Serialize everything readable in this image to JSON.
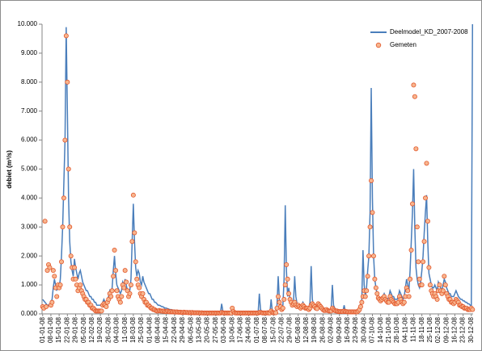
{
  "chart_data": {
    "type": "line",
    "y_label": "debiet (m³/s)",
    "categories": [
      "01-01-08",
      null,
      null,
      null,
      null,
      null,
      null,
      "08-01-08",
      null,
      null,
      null,
      null,
      null,
      null,
      "15-01-08",
      null,
      null,
      null,
      null,
      null,
      null,
      "22-01-08",
      null,
      null,
      null,
      null,
      null,
      null,
      "29-01-08",
      null,
      null,
      null,
      null,
      null,
      null,
      "05-02-08",
      null,
      null,
      null,
      null,
      null,
      null,
      "12-02-08",
      null,
      null,
      null,
      null,
      null,
      null,
      "19-02-08",
      null,
      null,
      null,
      null,
      null,
      null,
      "26-02-08",
      null,
      null,
      null,
      null,
      null,
      null,
      "04-03-08",
      null,
      null,
      null,
      null,
      null,
      null,
      "11-03-08",
      null,
      null,
      null,
      null,
      null,
      null,
      "18-03-08",
      null,
      null,
      null,
      null,
      null,
      null,
      "25-03-08",
      null,
      null,
      null,
      null,
      null,
      null,
      "01-04-08",
      null,
      null,
      null,
      null,
      null,
      null,
      "08-04-08",
      null,
      null,
      null,
      null,
      null,
      null,
      "15-04-08",
      null,
      null,
      null,
      null,
      null,
      null,
      "22-04-08",
      null,
      null,
      null,
      null,
      null,
      null,
      "29-04-08",
      null,
      null,
      null,
      null,
      null,
      null,
      "06-05-08",
      null,
      null,
      null,
      null,
      null,
      null,
      "13-05-08",
      null,
      null,
      null,
      null,
      null,
      null,
      "20-05-08",
      null,
      null,
      null,
      null,
      null,
      null,
      "27-05-08",
      null,
      null,
      null,
      null,
      null,
      null,
      "03-06-08",
      null,
      null,
      null,
      null,
      null,
      null,
      "10-06-08",
      null,
      null,
      null,
      null,
      null,
      null,
      "17-06-08",
      null,
      null,
      null,
      null,
      null,
      null,
      "24-06-08",
      null,
      null,
      null,
      null,
      null,
      null,
      "01-07-08",
      null,
      null,
      null,
      null,
      null,
      null,
      "08-07-08",
      null,
      null,
      null,
      null,
      null,
      null,
      "15-07-08",
      null,
      null,
      null,
      null,
      null,
      null,
      "22-07-08",
      null,
      null,
      null,
      null,
      null,
      null,
      "29-07-08",
      null,
      null,
      null,
      null,
      null,
      null,
      "05-08-08",
      null,
      null,
      null,
      null,
      null,
      null,
      "12-08-08",
      null,
      null,
      null,
      null,
      null,
      null,
      "19-08-08",
      null,
      null,
      null,
      null,
      null,
      null,
      "26-08-08",
      null,
      null,
      null,
      null,
      null,
      null,
      "02-09-08",
      null,
      null,
      null,
      null,
      null,
      null,
      "09-09-08",
      null,
      null,
      null,
      null,
      null,
      null,
      "16-09-08",
      null,
      null,
      null,
      null,
      null,
      null,
      "23-09-08",
      null,
      null,
      null,
      null,
      null,
      null,
      "30-09-08",
      null,
      null,
      null,
      null,
      null,
      null,
      "07-10-08",
      null,
      null,
      null,
      null,
      null,
      null,
      "14-10-08",
      null,
      null,
      null,
      null,
      null,
      null,
      "21-10-08",
      null,
      null,
      null,
      null,
      null,
      null,
      "28-10-08",
      null,
      null,
      null,
      null,
      null,
      null,
      "04-11-08",
      null,
      null,
      null,
      null,
      null,
      null,
      "11-11-08",
      null,
      null,
      null,
      null,
      null,
      null,
      "18-11-08",
      null,
      null,
      null,
      null,
      null,
      null,
      "25-11-08",
      null,
      null,
      null,
      null,
      null,
      null,
      "02-12-08",
      null,
      null,
      null,
      null,
      null,
      null,
      "09-12-08",
      null,
      null,
      null,
      null,
      null,
      null,
      "16-12-08",
      null,
      null,
      null,
      null,
      null,
      null,
      "23-12-08",
      null,
      null,
      null,
      null,
      null,
      null,
      "30-12-08",
      null
    ],
    "series": [
      {
        "name": "Deelmodel_KD_2007-2008",
        "type": "line",
        "color": "#4a7ebb",
        "values": [
          0.5,
          0.45,
          0.4,
          0.35,
          0.3,
          0.3,
          0.35,
          0.4,
          0.5,
          0.9,
          1.2,
          1.0,
          0.8,
          1.0,
          0.9,
          1.2,
          2.0,
          3.0,
          4.5,
          6.0,
          9.9,
          7.0,
          4.0,
          2.5,
          1.8,
          1.5,
          1.3,
          1.9,
          1.6,
          1.4,
          1.2,
          1.4,
          1.5,
          1.3,
          1.1,
          1.0,
          0.9,
          0.8,
          0.8,
          0.7,
          0.6,
          0.6,
          0.5,
          0.5,
          0.4,
          0.4,
          0.3,
          0.3,
          0.3,
          0.3,
          0.3,
          0.4,
          0.5,
          0.4,
          0.35,
          0.5,
          0.6,
          0.8,
          0.7,
          0.9,
          1.5,
          2.0,
          1.4,
          1.0,
          0.9,
          0.8,
          0.7,
          0.8,
          1.1,
          1.0,
          1.2,
          1.0,
          0.8,
          0.7,
          0.8,
          1.2,
          2.5,
          3.8,
          2.5,
          1.6,
          1.3,
          1.5,
          1.4,
          1.1,
          1.0,
          1.3,
          1.1,
          1.0,
          0.9,
          0.8,
          0.7,
          0.7,
          0.6,
          0.5,
          0.5,
          0.4,
          0.4,
          0.35,
          0.3,
          0.3,
          0.28,
          0.25,
          0.25,
          0.22,
          0.2,
          0.2,
          0.18,
          0.17,
          0.15,
          0.15,
          0.14,
          0.13,
          0.13,
          0.12,
          0.12,
          0.11,
          0.11,
          0.1,
          0.1,
          0.1,
          0.1,
          0.09,
          0.09,
          0.09,
          0.08,
          0.08,
          0.08,
          0.08,
          0.07,
          0.07,
          0.07,
          0.07,
          0.07,
          0.07,
          0.06,
          0.06,
          0.06,
          0.06,
          0.06,
          0.06,
          0.06,
          0.06,
          0.05,
          0.05,
          0.05,
          0.05,
          0.05,
          0.05,
          0.05,
          0.05,
          0.05,
          0.05,
          0.35,
          0.1,
          0.06,
          0.05,
          0.05,
          0.05,
          0.05,
          0.05,
          0.05,
          0.25,
          0.1,
          0.06,
          0.05,
          0.05,
          0.05,
          0.05,
          0.05,
          0.05,
          0.05,
          0.05,
          0.05,
          0.05,
          0.05,
          0.05,
          0.05,
          0.05,
          0.05,
          0.05,
          0.05,
          0.05,
          0.05,
          0.05,
          0.7,
          0.15,
          0.08,
          0.05,
          0.05,
          0.05,
          0.05,
          0.1,
          0.05,
          0.05,
          0.5,
          0.1,
          0.07,
          0.06,
          0.06,
          0.3,
          1.3,
          0.5,
          0.3,
          0.2,
          0.3,
          1.2,
          3.75,
          1.5,
          0.6,
          0.9,
          0.5,
          0.4,
          0.3,
          0.4,
          1.3,
          0.6,
          0.35,
          0.3,
          0.3,
          0.25,
          0.3,
          0.4,
          0.3,
          0.25,
          0.2,
          0.25,
          0.2,
          0.4,
          1.65,
          0.5,
          0.3,
          0.25,
          0.2,
          0.2,
          0.3,
          0.25,
          0.2,
          0.2,
          0.2,
          0.15,
          0.15,
          0.2,
          0.15,
          0.15,
          0.15,
          0.15,
          1.0,
          0.3,
          0.2,
          0.15,
          0.12,
          0.12,
          0.12,
          0.1,
          0.1,
          0.1,
          0.3,
          0.1,
          0.1,
          0.1,
          0.1,
          0.09,
          0.09,
          0.1,
          0.09,
          0.09,
          0.1,
          0.1,
          0.15,
          0.2,
          0.3,
          0.5,
          2.2,
          1.0,
          0.6,
          0.9,
          1.5,
          2.0,
          3.5,
          7.8,
          4.0,
          2.0,
          1.2,
          0.9,
          0.7,
          0.6,
          0.5,
          0.5,
          0.5,
          0.6,
          0.7,
          0.6,
          0.5,
          0.5,
          0.6,
          0.8,
          0.7,
          0.6,
          0.6,
          0.5,
          0.5,
          0.5,
          0.6,
          0.8,
          0.7,
          0.6,
          0.5,
          0.6,
          0.9,
          1.2,
          1.0,
          0.8,
          1.5,
          2.5,
          3.5,
          5.0,
          3.0,
          1.6,
          1.2,
          1.0,
          0.9,
          1.1,
          1.5,
          2.0,
          2.8,
          3.5,
          4.1,
          2.5,
          1.4,
          1.2,
          1.0,
          0.9,
          0.9,
          1.0,
          0.9,
          0.8,
          1.1,
          1.0,
          0.9,
          0.8,
          1.0,
          1.2,
          1.1,
          0.9,
          0.8,
          0.7,
          0.7,
          0.6,
          0.6,
          0.6,
          0.7,
          0.8,
          0.7,
          0.6,
          0.55,
          0.5,
          0.5,
          0.45,
          0.45,
          0.4,
          0.4,
          0.35,
          0.35,
          0.3,
          0.3,
          10.0
        ]
      },
      {
        "name": "Gemeten",
        "type": "scatter",
        "color": "#e2582c",
        "fill": "#f7b58e",
        "values": [
          0.25,
          0.2,
          3.2,
          0.25,
          1.5,
          1.7,
          1.6,
          0.3,
          0.4,
          1.5,
          1.3,
          0.9,
          0.6,
          1.0,
          0.9,
          1.0,
          1.8,
          3.0,
          4.0,
          6.0,
          9.6,
          8.0,
          5.0,
          3.0,
          2.0,
          1.6,
          1.2,
          1.6,
          1.2,
          1.0,
          0.8,
          0.9,
          1.0,
          0.8,
          0.7,
          0.6,
          0.5,
          0.5,
          0.4,
          0.4,
          0.3,
          0.3,
          0.2,
          0.2,
          0.15,
          0.1,
          0.1,
          0.1,
          0.1,
          0.1,
          0.1,
          0.3,
          0.35,
          0.3,
          0.25,
          0.4,
          0.5,
          0.7,
          0.6,
          0.8,
          1.3,
          2.2,
          1.5,
          0.8,
          0.6,
          0.5,
          0.4,
          0.6,
          1.0,
          0.9,
          1.5,
          1.1,
          0.8,
          0.6,
          0.7,
          1.0,
          2.5,
          4.1,
          2.8,
          1.8,
          1.2,
          1.0,
          0.9,
          0.7,
          0.6,
          0.7,
          0.5,
          0.4,
          0.4,
          0.3,
          0.3,
          0.25,
          0.2,
          0.2,
          0.15,
          0.15,
          0.12,
          0.1,
          0.1,
          0.12,
          0.1,
          0.1,
          0.09,
          0.1,
          0.08,
          0.08,
          0.1,
          0.08,
          0.07,
          0.08,
          0.07,
          0.07,
          0.07,
          0.06,
          0.07,
          0.06,
          0.06,
          0.06,
          0.05,
          0.05,
          0.06,
          0.05,
          0.05,
          0.05,
          0.04,
          0.05,
          0.04,
          0.05,
          0.04,
          0.04,
          0.04,
          0.04,
          0.04,
          0.04,
          0.03,
          0.04,
          0.03,
          0.03,
          0.03,
          0.03,
          0.03,
          0.03,
          0.03,
          0.03,
          0.03,
          0.03,
          0.03,
          0.03,
          0.03,
          0.03,
          0.03,
          0.03,
          0.05,
          0.04,
          0.03,
          0.03,
          0.03,
          0.03,
          0.03,
          0.03,
          0.03,
          0.2,
          0.08,
          0.04,
          0.03,
          0.03,
          0.03,
          0.03,
          0.03,
          0.03,
          0.03,
          0.03,
          0.03,
          0.03,
          0.03,
          0.03,
          0.03,
          0.03,
          0.03,
          0.03,
          0.03,
          0.03,
          0.03,
          0.03,
          0.05,
          0.05,
          0.04,
          0.03,
          0.03,
          0.03,
          0.03,
          0.04,
          0.03,
          0.03,
          0.1,
          0.05,
          0.04,
          0.04,
          0.04,
          0.2,
          0.6,
          0.4,
          0.25,
          0.15,
          0.2,
          0.5,
          1.0,
          1.7,
          1.2,
          0.7,
          0.5,
          0.4,
          0.3,
          0.35,
          0.4,
          0.3,
          0.25,
          0.3,
          0.25,
          0.2,
          0.25,
          0.3,
          0.25,
          0.2,
          0.2,
          0.2,
          0.15,
          0.2,
          0.3,
          0.35,
          0.3,
          0.25,
          0.2,
          0.18,
          0.35,
          0.3,
          0.25,
          0.2,
          0.15,
          0.12,
          0.12,
          0.15,
          0.12,
          0.1,
          0.1,
          0.1,
          0.2,
          0.15,
          0.12,
          0.1,
          0.1,
          0.08,
          0.08,
          0.08,
          0.08,
          0.08,
          0.1,
          0.08,
          0.08,
          0.07,
          0.07,
          0.07,
          0.07,
          0.07,
          0.07,
          0.07,
          0.07,
          0.07,
          0.1,
          0.15,
          0.25,
          0.4,
          0.6,
          0.8,
          0.6,
          0.8,
          1.3,
          2.0,
          3.0,
          4.6,
          3.5,
          2.0,
          1.2,
          0.9,
          0.7,
          0.55,
          0.5,
          0.45,
          0.5,
          0.55,
          0.6,
          0.5,
          0.45,
          0.4,
          0.4,
          0.6,
          0.5,
          0.45,
          0.4,
          0.35,
          0.35,
          0.35,
          0.4,
          0.6,
          0.5,
          0.4,
          0.35,
          0.4,
          0.6,
          0.9,
          0.8,
          0.6,
          1.2,
          2.2,
          3.8,
          7.9,
          7.5,
          5.7,
          3.0,
          1.8,
          1.2,
          1.0,
          1.0,
          1.8,
          2.5,
          4.0,
          5.2,
          3.2,
          1.6,
          1.0,
          0.8,
          0.7,
          0.6,
          0.7,
          0.6,
          0.5,
          0.8,
          1.0,
          0.8,
          0.7,
          0.8,
          1.3,
          1.0,
          0.7,
          0.6,
          0.5,
          0.5,
          0.4,
          0.4,
          0.35,
          0.4,
          0.5,
          0.45,
          0.4,
          0.3,
          0.3,
          0.25,
          0.25,
          0.2,
          0.2,
          0.2,
          0.15,
          0.15,
          0.15,
          0.2,
          0.15
        ]
      }
    ],
    "ylim": [
      0,
      10
    ],
    "yticks": [
      {
        "value": 0,
        "label": "0.000"
      },
      {
        "value": 1,
        "label": "1.000"
      },
      {
        "value": 2,
        "label": "2.000"
      },
      {
        "value": 3,
        "label": "3.000"
      },
      {
        "value": 4,
        "label": "4.000"
      },
      {
        "value": 5,
        "label": "5.000"
      },
      {
        "value": 6,
        "label": "6.000"
      },
      {
        "value": 7,
        "label": "7.000"
      },
      {
        "value": 8,
        "label": "8.000"
      },
      {
        "value": 9,
        "label": "9.000"
      },
      {
        "value": 10,
        "label": "10.000"
      }
    ],
    "grid": false,
    "legend": "upper-right"
  }
}
